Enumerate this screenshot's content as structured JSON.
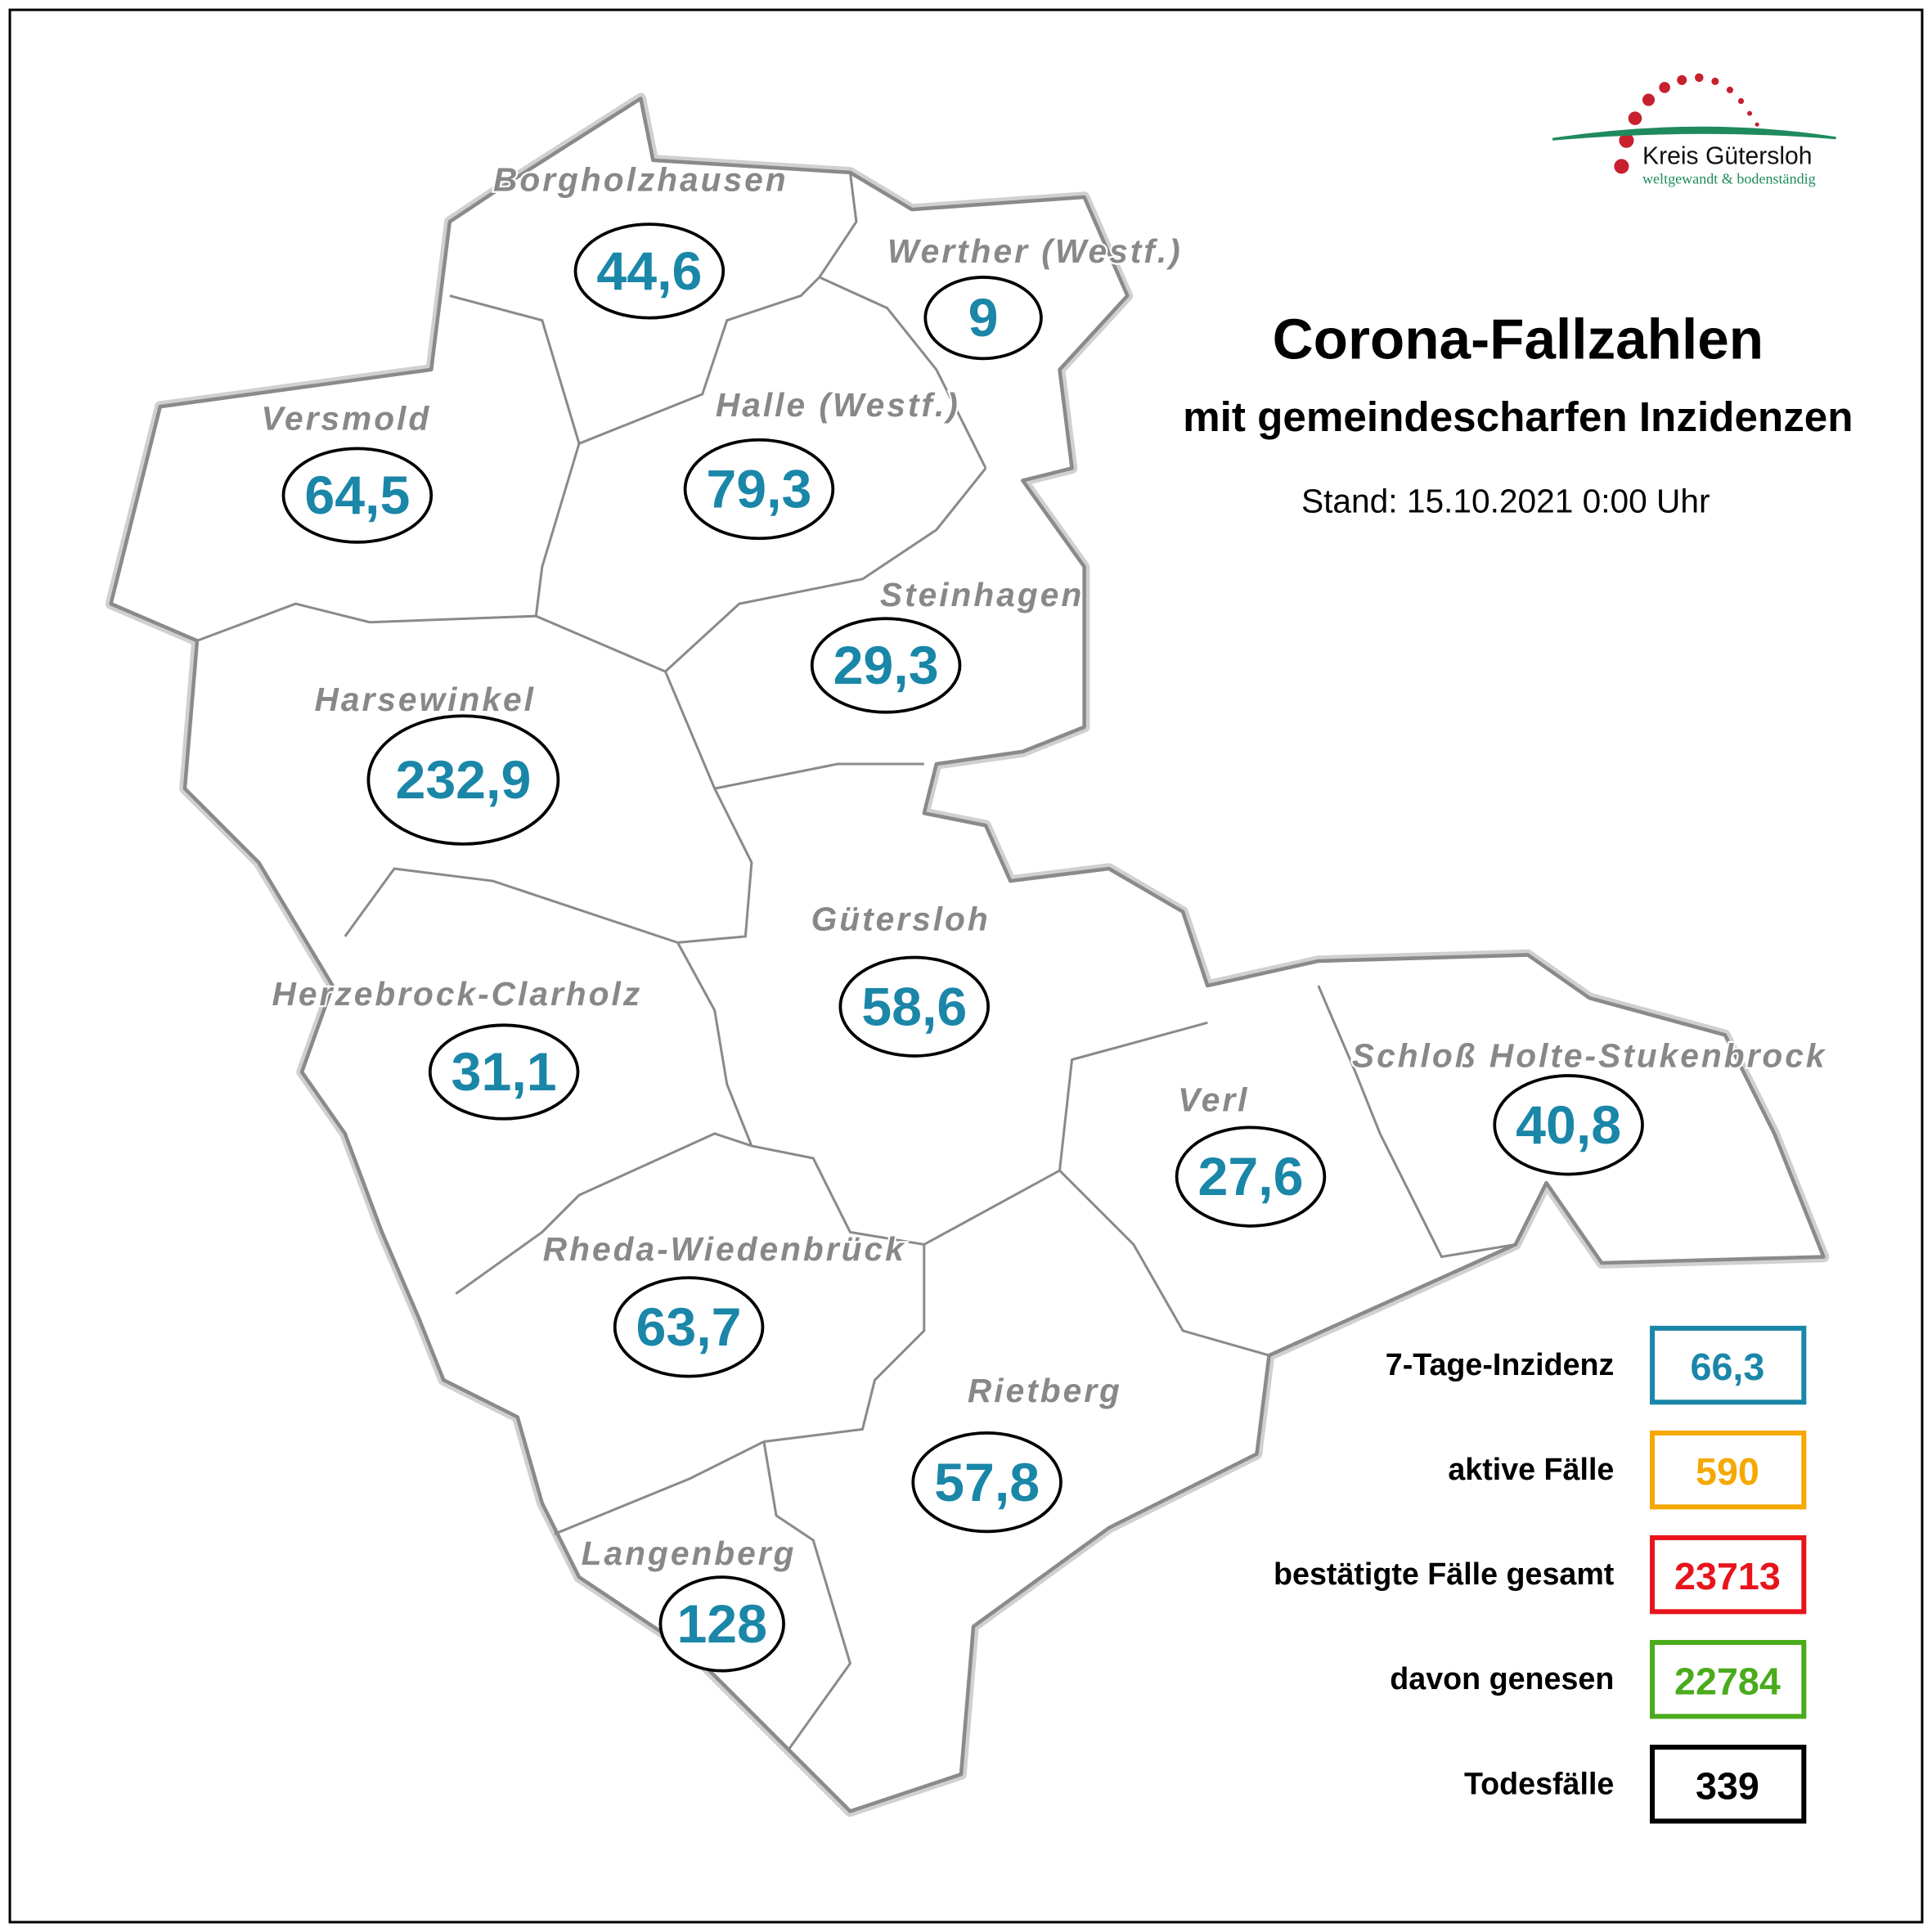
{
  "logo": {
    "name": "Kreis Gütersloh",
    "slogan": "weltgewandt & bodenständig",
    "dot_color": "#c8202f",
    "arc_color": "#1f8a5e"
  },
  "title": "Corona-Fallzahlen",
  "subtitle": "mit gemeindescharfen Inzidenzen",
  "stand": "Stand: 15.10.2021 0:00 Uhr",
  "municipalities": [
    {
      "name": "Borgholzhausen",
      "incidence": "44,6"
    },
    {
      "name": "Werther (Westf.)",
      "incidence": "9"
    },
    {
      "name": "Versmold",
      "incidence": "64,5"
    },
    {
      "name": "Halle (Westf.)",
      "incidence": "79,3"
    },
    {
      "name": "Steinhagen",
      "incidence": "29,3"
    },
    {
      "name": "Harsewinkel",
      "incidence": "232,9"
    },
    {
      "name": "Gütersloh",
      "incidence": "58,6"
    },
    {
      "name": "Herzebrock-Clarholz",
      "incidence": "31,1"
    },
    {
      "name": "Verl",
      "incidence": "27,6"
    },
    {
      "name": "Schloß Holte-Stukenbrock",
      "incidence": "40,8"
    },
    {
      "name": "Rheda-Wiedenbrück",
      "incidence": "63,7"
    },
    {
      "name": "Rietberg",
      "incidence": "57,8"
    },
    {
      "name": "Langenberg",
      "incidence": "128"
    }
  ],
  "legend": [
    {
      "label": "7-Tage-Inzidenz",
      "value": "66,3",
      "color": "#1a86a8"
    },
    {
      "label": "aktive Fälle",
      "value": "590",
      "color": "#f5a800"
    },
    {
      "label": "bestätigte Fälle gesamt",
      "value": "23713",
      "color": "#e8141c"
    },
    {
      "label": "davon genesen",
      "value": "22784",
      "color": "#4aab1c"
    },
    {
      "label": "Todesfälle",
      "value": "339",
      "color": "#000000"
    }
  ]
}
